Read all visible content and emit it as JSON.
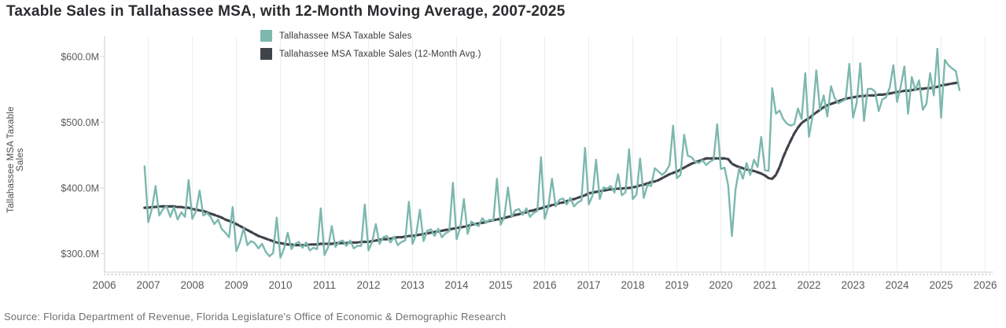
{
  "title": "Taxable Sales in Tallahassee MSA, with 12-Month Moving Average, 2007-2025",
  "source": "Source: Florida Department of Revenue, Florida Legislature's Office of Economic & Demographic Research",
  "legend": {
    "items": [
      {
        "label": "Tallahassee MSA Taxable Sales",
        "color": "#7cb8ae"
      },
      {
        "label": "Tallahassee MSA Taxable Sales (12-Month Avg.)",
        "color": "#3f434a"
      }
    ]
  },
  "y_axis": {
    "title": "Tallahassee MSA Taxable Sales",
    "tick_labels": [
      "$600.0M",
      "$500.0M",
      "$400.0M",
      "$300.0M"
    ],
    "tick_values": [
      600,
      500,
      400,
      300
    ]
  },
  "x_axis": {
    "tick_labels": [
      "2006",
      "2007",
      "2008",
      "2009",
      "2010",
      "2011",
      "2012",
      "2013",
      "2014",
      "2015",
      "2016",
      "2017",
      "2018",
      "2019",
      "2020",
      "2021",
      "2022",
      "2023",
      "2024",
      "2025",
      "2026"
    ],
    "tick_values": [
      2006,
      2007,
      2008,
      2009,
      2010,
      2011,
      2012,
      2013,
      2014,
      2015,
      2016,
      2017,
      2018,
      2019,
      2020,
      2021,
      2022,
      2023,
      2024,
      2025,
      2026
    ]
  },
  "colors": {
    "sales_line": "#7cb8ae",
    "avg_line": "#3f434a",
    "gridline": "#ededed",
    "spine": "#d9d9d9",
    "minor_tick": "#c4c4c4",
    "tick_text": "#595959"
  },
  "chart_data": {
    "type": "line",
    "x_unit": "month",
    "start_month": "2006-12",
    "end_month": "2025-06",
    "xlabel": "",
    "ylabel": "Tallahassee MSA Taxable Sales",
    "y_unit": "millions USD",
    "ylim": [
      270,
      630
    ],
    "xlim_years": [
      2006,
      2026
    ],
    "grid": "vertical-yearly",
    "legend_position": "top-center",
    "series": [
      {
        "name": "Tallahassee MSA Taxable Sales",
        "color": "#7cb8ae",
        "dashed": false,
        "values": [
          433,
          348,
          369,
          403,
          358,
          368,
          372,
          356,
          371,
          352,
          363,
          356,
          412,
          353,
          365,
          396,
          358,
          362,
          356,
          345,
          352,
          338,
          332,
          325,
          371,
          304,
          318,
          339,
          313,
          319,
          316,
          308,
          315,
          303,
          296,
          301,
          355,
          294,
          308,
          332,
          307,
          315,
          318,
          309,
          317,
          305,
          309,
          307,
          369,
          298,
          310,
          342,
          310,
          318,
          320,
          312,
          320,
          308,
          312,
          312,
          375,
          305,
          318,
          345,
          315,
          325,
          327,
          317,
          326,
          313,
          318,
          320,
          379,
          315,
          330,
          367,
          319,
          335,
          337,
          327,
          338,
          325,
          331,
          334,
          408,
          322,
          340,
          383,
          330,
          349,
          345,
          342,
          354,
          347,
          352,
          350,
          414,
          344,
          356,
          401,
          356,
          366,
          368,
          359,
          369,
          356,
          362,
          365,
          447,
          353,
          372,
          414,
          372,
          382,
          384,
          375,
          385,
          372,
          378,
          381,
          461,
          375,
          388,
          443,
          383,
          401,
          399,
          403,
          393,
          421,
          389,
          393,
          459,
          383,
          390,
          445,
          385,
          405,
          403,
          430,
          425,
          420,
          425,
          435,
          495,
          415,
          420,
          481,
          449,
          447,
          440,
          438,
          442,
          435,
          440,
          443,
          497,
          429,
          431,
          404,
          327,
          398,
          430,
          414,
          438,
          420,
          443,
          432,
          478,
          427,
          426,
          552,
          513,
          518,
          505,
          498,
          495,
          497,
          521,
          505,
          575,
          478,
          510,
          579,
          519,
          541,
          509,
          555,
          537,
          529,
          532,
          535,
          589,
          507,
          530,
          590,
          502,
          551,
          551,
          547,
          517,
          535,
          538,
          553,
          587,
          531,
          555,
          585,
          513,
          569,
          549,
          564,
          519,
          528,
          575,
          541,
          612,
          507,
          595,
          587,
          582,
          578,
          549
        ]
      },
      {
        "name": "Tallahassee MSA Taxable Sales (12-Month Avg.)",
        "color": "#3f434a",
        "dashed": true,
        "values": [
          370,
          370,
          371,
          371,
          372,
          372,
          372,
          372,
          372,
          371,
          371,
          370,
          370,
          368,
          367,
          366,
          365,
          363,
          361,
          359,
          357,
          355,
          352,
          350,
          348,
          345,
          342,
          339,
          336,
          333,
          330,
          327,
          325,
          323,
          321,
          319,
          317,
          316,
          315,
          314,
          314,
          313,
          313,
          313,
          313,
          314,
          314,
          314,
          315,
          315,
          315,
          315,
          316,
          316,
          316,
          316,
          317,
          317,
          317,
          318,
          318,
          318,
          319,
          320,
          321,
          322,
          322,
          323,
          324,
          325,
          325,
          326,
          327,
          327,
          328,
          329,
          330,
          331,
          332,
          333,
          334,
          335,
          336,
          337,
          338,
          339,
          340,
          341,
          342,
          344,
          345,
          346,
          347,
          348,
          350,
          351,
          352,
          353,
          354,
          356,
          357,
          359,
          360,
          362,
          363,
          365,
          366,
          368,
          369,
          371,
          372,
          374,
          375,
          377,
          378,
          380,
          382,
          383,
          385,
          387,
          389,
          392,
          393,
          394,
          395,
          396,
          397,
          398,
          398,
          399,
          399,
          400,
          400,
          401,
          402,
          404,
          405,
          407,
          409,
          410,
          412,
          415,
          418,
          421,
          423,
          425,
          428,
          431,
          434,
          437,
          439,
          441,
          443,
          445,
          445,
          445,
          445,
          445,
          445,
          444,
          437,
          434,
          432,
          430,
          428,
          427,
          426,
          424,
          422,
          419,
          415,
          414,
          420,
          432,
          447,
          460,
          472,
          483,
          492,
          499,
          503,
          506,
          511,
          515,
          519,
          523,
          526,
          528,
          530,
          532,
          534,
          536,
          537,
          538,
          539,
          540,
          540,
          541,
          541,
          541,
          542,
          542,
          543,
          544,
          545,
          546,
          547,
          548,
          548,
          549,
          550,
          551,
          551,
          552,
          552,
          553,
          554,
          556,
          557,
          558,
          559,
          560,
          561
        ]
      }
    ]
  }
}
